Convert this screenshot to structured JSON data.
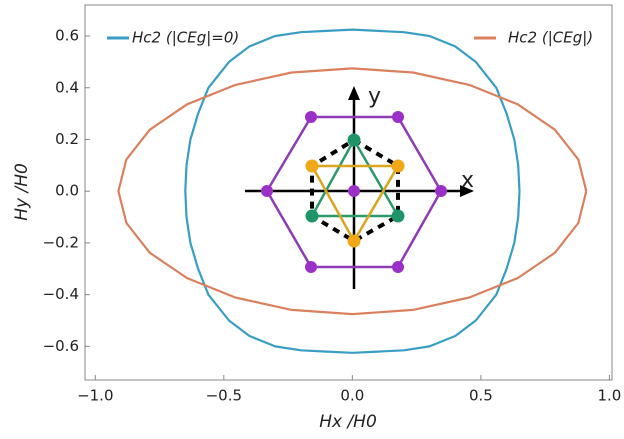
{
  "chart_data": {
    "type": "line",
    "x_label": "Hx /H0",
    "y_label": "Hy /H0",
    "annotations": [
      "x",
      "y"
    ],
    "legend": "top",
    "xlim": [
      -1.04,
      1.01
    ],
    "ylim": [
      -0.73,
      0.72
    ],
    "xticks": [
      {
        "value": -1,
        "label": "−1.0"
      },
      {
        "value": -0.5,
        "label": "−0.5"
      },
      {
        "value": 0,
        "label": "0.0"
      },
      {
        "value": 0.5,
        "label": "0.5"
      },
      {
        "value": 1,
        "label": "1.0"
      }
    ],
    "yticks": [
      {
        "value": -0.6,
        "label": "−0.6"
      },
      {
        "value": -0.4,
        "label": "−0.4"
      },
      {
        "value": -0.2,
        "label": "−0.2"
      },
      {
        "value": 0,
        "label": "0.0"
      },
      {
        "value": 0.2,
        "label": "0.2"
      },
      {
        "value": 0.4,
        "label": "0.4"
      },
      {
        "value": 0.6,
        "label": "0.6"
      }
    ],
    "series": [
      {
        "name": "Hc2 (|CEg|=0)",
        "color": "#3a9ec4",
        "x": [
          0.65,
          0.645,
          0.63,
          0.6,
          0.56,
          0.48,
          0.4,
          0.3,
          0.2,
          0.1,
          0,
          -0.1,
          -0.2,
          -0.3,
          -0.4,
          -0.48,
          -0.56,
          -0.6,
          -0.63,
          -0.645,
          -0.65,
          -0.645,
          -0.63,
          -0.6,
          -0.56,
          -0.48,
          -0.4,
          -0.3,
          -0.2,
          -0.1,
          0,
          0.1,
          0.2,
          0.3,
          0.4,
          0.48,
          0.56,
          0.6,
          0.63,
          0.645,
          0.65
        ],
        "y": [
          0,
          0.1,
          0.2,
          0.3,
          0.4,
          0.5,
          0.56,
          0.6,
          0.615,
          0.62,
          0.625,
          0.62,
          0.615,
          0.6,
          0.56,
          0.5,
          0.4,
          0.3,
          0.2,
          0.1,
          0,
          -0.1,
          -0.2,
          -0.3,
          -0.4,
          -0.5,
          -0.56,
          -0.6,
          -0.615,
          -0.62,
          -0.625,
          -0.62,
          -0.615,
          -0.6,
          -0.56,
          -0.5,
          -0.4,
          -0.3,
          -0.2,
          -0.1,
          0
        ]
      },
      {
        "name": "Hc2 (|CEg|)",
        "color": "#d9805e",
        "x": [
          0.91,
          0.879,
          0.788,
          0.643,
          0.455,
          0.236,
          0,
          -0.236,
          -0.455,
          -0.643,
          -0.788,
          -0.879,
          -0.91,
          -0.879,
          -0.788,
          -0.643,
          -0.455,
          -0.236,
          0,
          0.236,
          0.455,
          0.643,
          0.788,
          0.879,
          0.91
        ],
        "y": [
          0,
          0.123,
          0.238,
          0.336,
          0.411,
          0.459,
          0.475,
          0.459,
          0.411,
          0.336,
          0.238,
          0.123,
          0,
          -0.123,
          -0.238,
          -0.336,
          -0.411,
          -0.459,
          -0.475,
          -0.459,
          -0.411,
          -0.336,
          -0.238,
          -0.123,
          0
        ]
      }
    ]
  }
}
